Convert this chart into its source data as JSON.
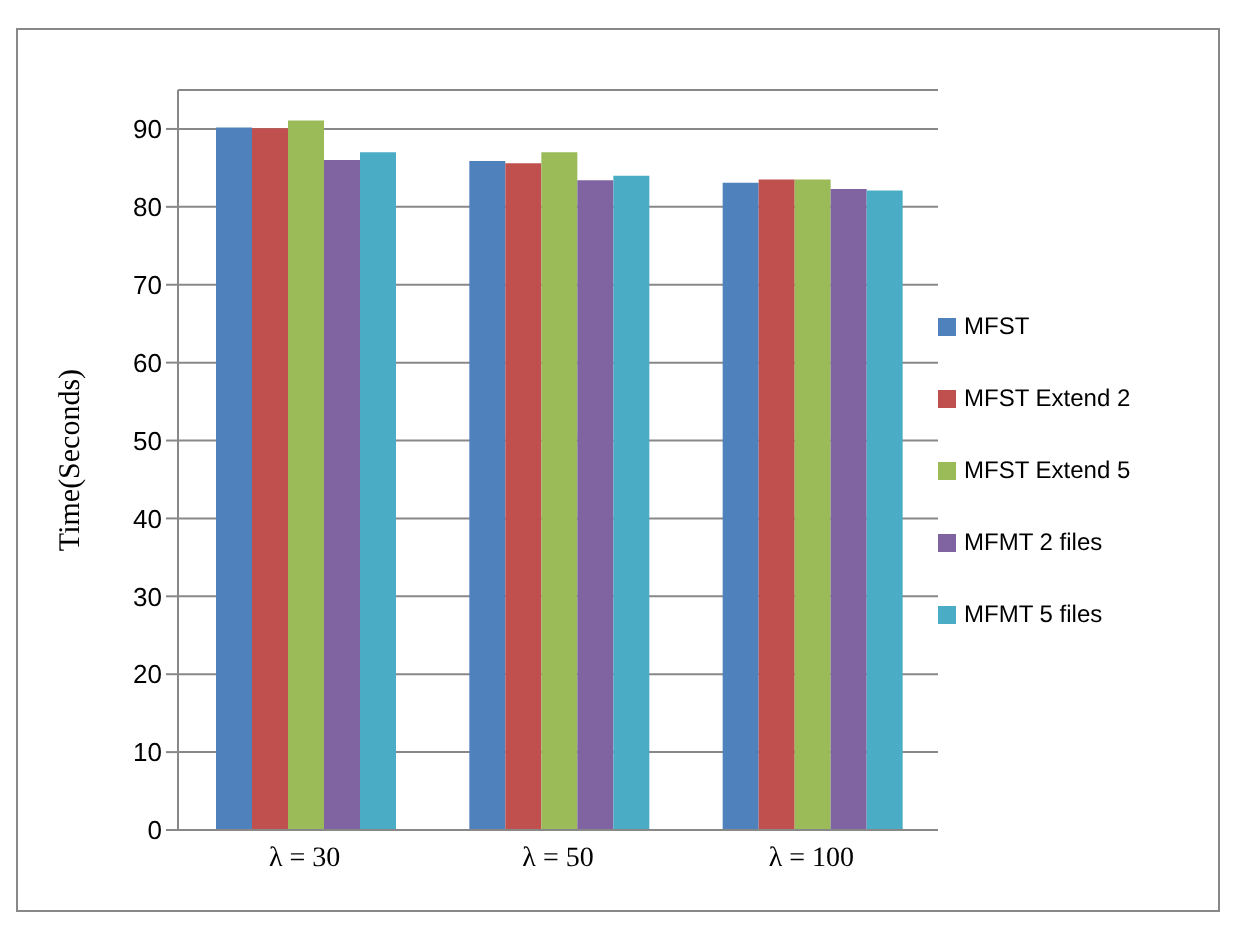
{
  "chart_data": {
    "type": "bar",
    "ylabel": "Time(Seconds)",
    "categories": [
      "λ = 30",
      "λ = 50",
      "λ = 100"
    ],
    "series": [
      {
        "name": "MFST",
        "color": "#4f81bd",
        "values": [
          90.2,
          85.9,
          83.1
        ]
      },
      {
        "name": "MFST Extend 2",
        "color": "#c0504d",
        "values": [
          90.1,
          85.6,
          83.5
        ]
      },
      {
        "name": "MFST Extend 5",
        "color": "#9bbb59",
        "values": [
          91.1,
          87,
          83.5
        ]
      },
      {
        "name": "MFMT 2 files",
        "color": "#8064a2",
        "values": [
          86,
          83.4,
          82.3
        ]
      },
      {
        "name": "MFMT 5 files",
        "color": "#4bacc6",
        "values": [
          87,
          84,
          82.1
        ]
      }
    ],
    "ylim": [
      0,
      95
    ],
    "yticks": [
      0,
      10,
      20,
      30,
      40,
      50,
      60,
      70,
      80,
      90
    ],
    "grid": "y",
    "legend": "right"
  }
}
